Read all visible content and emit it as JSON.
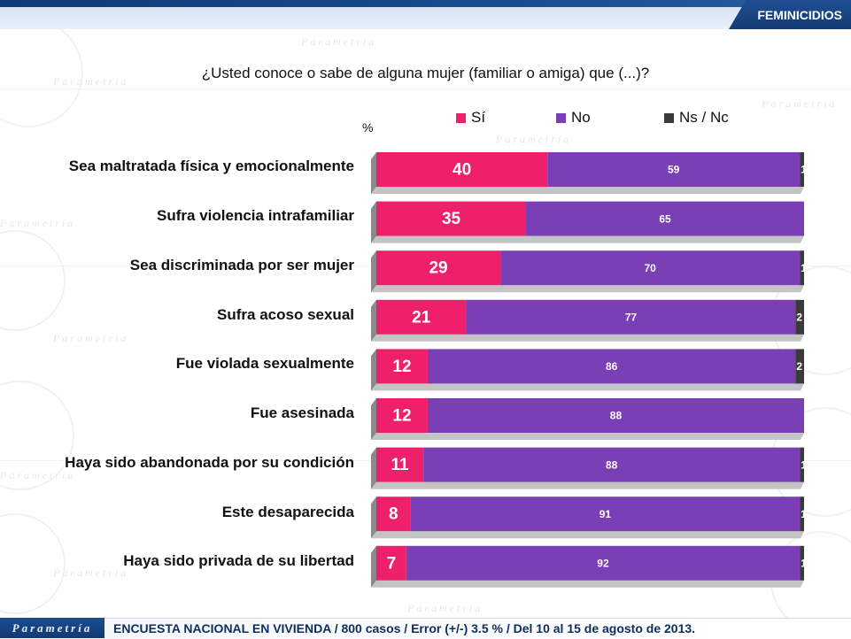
{
  "header": {
    "section_title": "FEMINICIDIOS"
  },
  "footer": {
    "brand": "Parametría",
    "note": "ENCUESTA NACIONAL EN VIVIENDA / 800 casos / Error (+/-) 3.5 % / Del 10 al 15 de agosto de 2013."
  },
  "watermark": {
    "text": "Parametría"
  },
  "colors": {
    "si": "#ee1f6b",
    "no": "#7b3fb5",
    "nsnc": "#3a3a3a",
    "header": "#133b75"
  },
  "chart_data": {
    "type": "bar",
    "orientation": "horizontal",
    "stacked": true,
    "title": "¿Usted conoce o sabe de alguna mujer (familiar o amiga) que (...)?",
    "unit_label": "%",
    "xlim": [
      0,
      100
    ],
    "legend_position": "top",
    "categories": [
      "Sea maltratada física y emocionalmente",
      "Sufra violencia intrafamiliar",
      "Sea discriminada por ser mujer",
      "Sufra acoso sexual",
      "Fue violada sexualmente",
      "Fue asesinada",
      "Haya sido abandonada por su condición",
      "Este desaparecida",
      "Haya sido privada de su libertad"
    ],
    "series": [
      {
        "name": "Sí",
        "values": [
          40,
          35,
          29,
          21,
          12,
          12,
          11,
          8,
          7
        ]
      },
      {
        "name": "No",
        "values": [
          59,
          65,
          70,
          77,
          86,
          88,
          88,
          91,
          92
        ]
      },
      {
        "name": "Ns / Nc",
        "values": [
          1,
          null,
          1,
          2,
          2,
          null,
          1,
          1,
          1
        ]
      }
    ]
  }
}
